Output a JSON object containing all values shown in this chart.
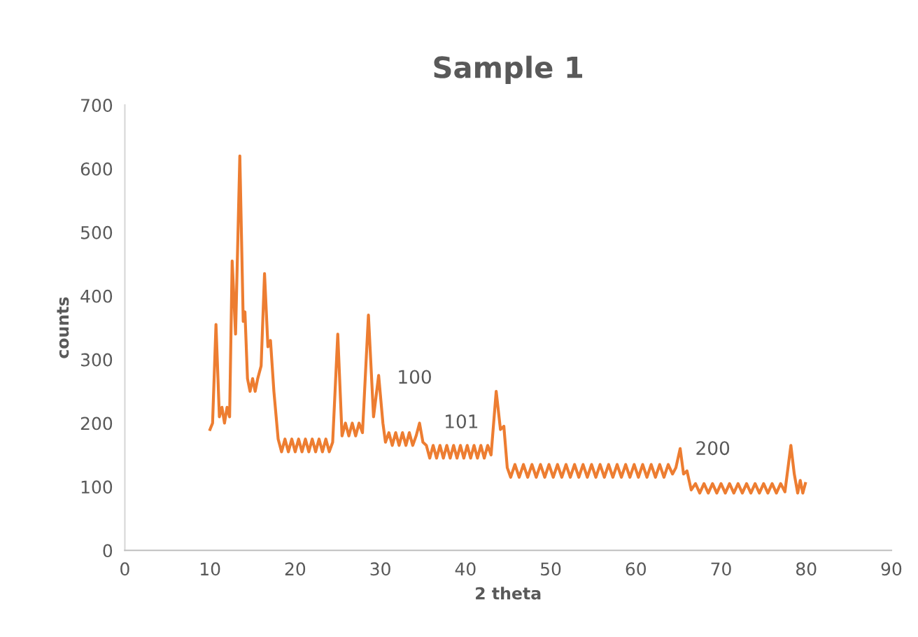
{
  "chart_data": {
    "type": "line",
    "title": "Sample 1",
    "xlabel": "2 theta",
    "ylabel": "counts",
    "xlim": [
      0,
      90
    ],
    "xticks": [
      0,
      10,
      20,
      30,
      40,
      50,
      60,
      70,
      80,
      90
    ],
    "ylim": [
      0,
      700
    ],
    "yticks": [
      0,
      100,
      200,
      300,
      400,
      500,
      600,
      700
    ],
    "grid": false,
    "legend": false,
    "marker": "none",
    "line_style": "solid",
    "annotations": [
      "100",
      "101",
      "200"
    ],
    "series": [
      {
        "color": "#ed7d31",
        "x": [
          10.0,
          10.3,
          10.7,
          11.1,
          11.4,
          11.7,
          12.0,
          12.3,
          12.6,
          13.0,
          13.5,
          13.9,
          14.1,
          14.4,
          14.7,
          15.0,
          15.3,
          15.6,
          16.0,
          16.4,
          16.8,
          17.1,
          17.5,
          18.0,
          18.4,
          18.8,
          19.2,
          19.6,
          20.0,
          20.4,
          20.8,
          21.2,
          21.6,
          22.0,
          22.4,
          22.8,
          23.2,
          23.6,
          24.0,
          24.4,
          25.0,
          25.5,
          25.9,
          26.3,
          26.7,
          27.1,
          27.5,
          27.9,
          28.6,
          29.2,
          29.8,
          30.3,
          30.6,
          31.0,
          31.4,
          31.8,
          32.2,
          32.6,
          33.0,
          33.4,
          33.8,
          34.2,
          34.6,
          35.0,
          35.4,
          35.8,
          36.2,
          36.6,
          37.0,
          37.4,
          37.8,
          38.2,
          38.6,
          39.0,
          39.4,
          39.8,
          40.2,
          40.6,
          41.0,
          41.4,
          41.8,
          42.2,
          42.6,
          43.0,
          43.6,
          44.1,
          44.5,
          44.9,
          45.3,
          45.8,
          46.3,
          46.8,
          47.3,
          47.8,
          48.3,
          48.8,
          49.3,
          49.8,
          50.3,
          50.8,
          51.3,
          51.8,
          52.3,
          52.8,
          53.3,
          53.8,
          54.3,
          54.8,
          55.3,
          55.8,
          56.3,
          56.8,
          57.3,
          57.8,
          58.3,
          58.8,
          59.3,
          59.8,
          60.3,
          60.8,
          61.3,
          61.8,
          62.3,
          62.8,
          63.3,
          63.8,
          64.3,
          64.7,
          65.2,
          65.6,
          66.0,
          66.5,
          67.0,
          67.5,
          68.0,
          68.5,
          69.0,
          69.5,
          70.0,
          70.5,
          71.0,
          71.5,
          72.0,
          72.5,
          73.0,
          73.5,
          74.0,
          74.5,
          75.0,
          75.5,
          76.0,
          76.5,
          77.0,
          77.5,
          78.2,
          78.6,
          79.0,
          79.3,
          79.6,
          79.9
        ],
        "values": [
          190,
          200,
          355,
          210,
          225,
          200,
          225,
          210,
          455,
          340,
          620,
          360,
          375,
          270,
          250,
          270,
          250,
          270,
          290,
          435,
          320,
          330,
          250,
          175,
          155,
          175,
          155,
          175,
          155,
          175,
          155,
          175,
          155,
          175,
          155,
          175,
          155,
          175,
          155,
          170,
          340,
          180,
          200,
          180,
          200,
          180,
          200,
          185,
          370,
          210,
          275,
          200,
          170,
          185,
          165,
          185,
          165,
          185,
          165,
          185,
          165,
          180,
          200,
          170,
          165,
          145,
          165,
          145,
          165,
          145,
          165,
          145,
          165,
          145,
          165,
          145,
          165,
          145,
          165,
          145,
          165,
          145,
          165,
          150,
          250,
          190,
          195,
          130,
          115,
          135,
          115,
          135,
          115,
          135,
          115,
          135,
          115,
          135,
          115,
          135,
          115,
          135,
          115,
          135,
          115,
          135,
          115,
          135,
          115,
          135,
          115,
          135,
          115,
          135,
          115,
          135,
          115,
          135,
          115,
          135,
          115,
          135,
          115,
          135,
          115,
          135,
          120,
          130,
          160,
          120,
          125,
          95,
          105,
          90,
          105,
          90,
          105,
          90,
          105,
          90,
          105,
          90,
          105,
          90,
          105,
          90,
          105,
          90,
          105,
          90,
          105,
          90,
          105,
          92,
          165,
          120,
          90,
          110,
          90,
          105
        ]
      }
    ]
  }
}
